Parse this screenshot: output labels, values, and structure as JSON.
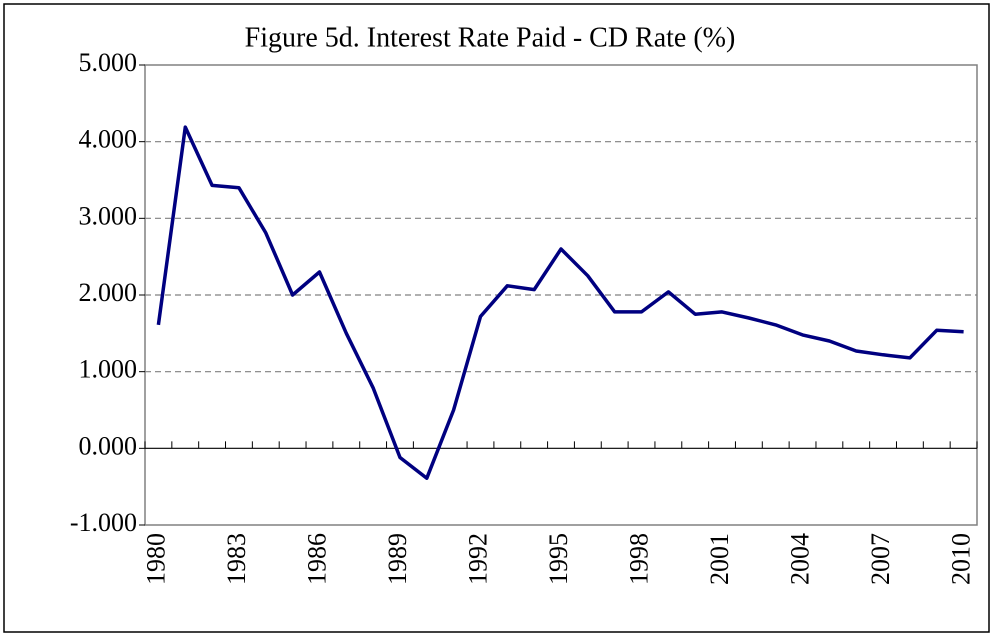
{
  "chart_data": {
    "type": "line",
    "title": "Figure 5d. Interest Rate Paid - CD Rate (%)",
    "categories": [
      "1980",
      null,
      null,
      "1983",
      null,
      null,
      "1986",
      null,
      null,
      "1989",
      null,
      null,
      "1992",
      null,
      null,
      "1995",
      null,
      null,
      "1998",
      null,
      null,
      "2001",
      null,
      null,
      "2004",
      null,
      null,
      "2007",
      null,
      null,
      "2010"
    ],
    "values": [
      1.61,
      4.19,
      3.43,
      3.4,
      2.81,
      2.0,
      2.3,
      1.5,
      0.79,
      -0.12,
      -0.39,
      0.5,
      1.72,
      2.12,
      2.07,
      2.6,
      2.25,
      1.78,
      1.78,
      2.04,
      1.75,
      1.78,
      1.7,
      1.61,
      1.48,
      1.4,
      1.27,
      1.22,
      1.18,
      1.54,
      1.52
    ],
    "color": "#000080",
    "ylim": [
      -1,
      5
    ],
    "yticks": [
      {
        "value": -1,
        "label": "-1.000"
      },
      {
        "value": 0,
        "label": "0.000"
      },
      {
        "value": 1,
        "label": "1.000"
      },
      {
        "value": 2,
        "label": "2.000"
      },
      {
        "value": 3,
        "label": "3.000"
      },
      {
        "value": 4,
        "label": "4.000"
      },
      {
        "value": 5,
        "label": "5.000"
      }
    ],
    "grid": true
  }
}
